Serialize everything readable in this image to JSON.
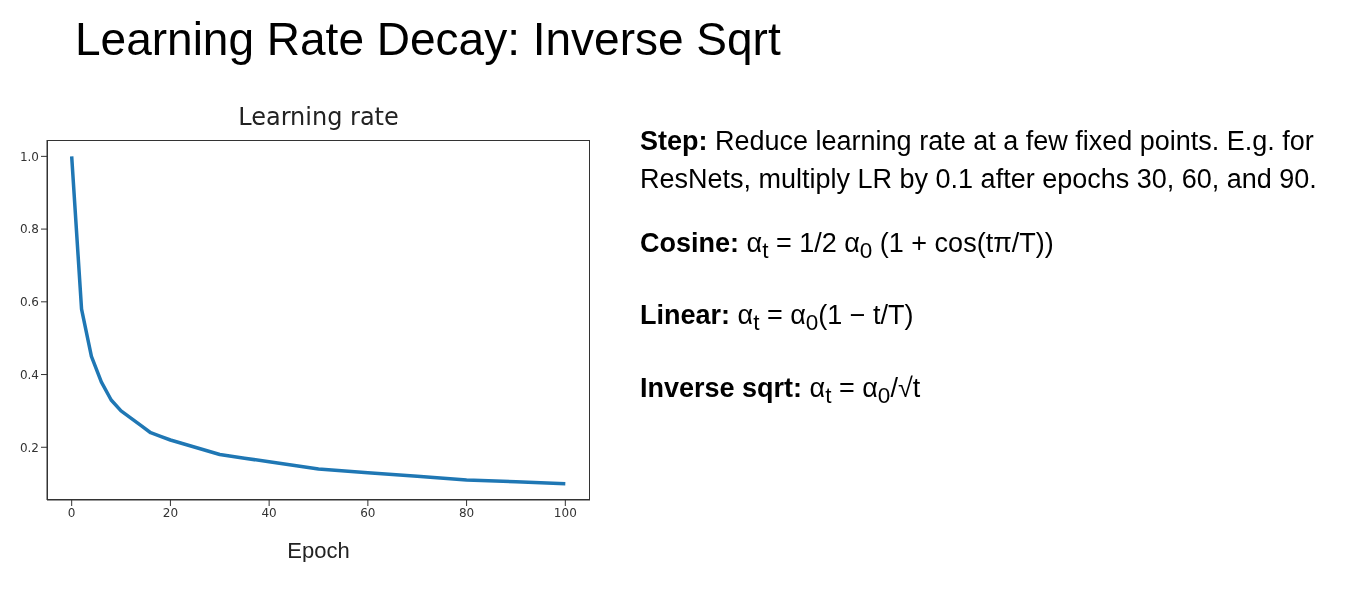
{
  "chart_data": {
    "type": "line",
    "title": "Learning Rate Decay: Inverse Sqrt",
    "subtitle": "Learning rate",
    "xlabel": "Epoch",
    "x": [
      0,
      2,
      4,
      6,
      8,
      10,
      12,
      14,
      16,
      18,
      20,
      25,
      30,
      35,
      40,
      50,
      60,
      70,
      80,
      90,
      100
    ],
    "series": [
      {
        "color": "#1f77b4",
        "values": [
          1.0,
          0.58,
          0.45,
          0.38,
          0.33,
          0.3,
          0.28,
          0.26,
          0.24,
          0.23,
          0.22,
          0.2,
          0.18,
          0.17,
          0.16,
          0.14,
          0.13,
          0.12,
          0.11,
          0.105,
          0.1
        ]
      }
    ],
    "xlim": [
      -5,
      105
    ],
    "ylim": [
      0.055,
      1.045
    ],
    "xticks": [
      0,
      20,
      40,
      60,
      80,
      100
    ],
    "yticks": [
      {
        "value": 0.2,
        "label": "0.2"
      },
      {
        "value": 0.4,
        "label": "0.4"
      },
      {
        "value": 0.6,
        "label": "0.6"
      },
      {
        "value": 0.8,
        "label": "0.8"
      },
      {
        "value": 1,
        "label": "1.0"
      }
    ],
    "grid": false,
    "marker": "none",
    "line_style": "solid",
    "annotations": [
      "Step: Reduce learning rate at a few fixed points. E.g. for ResNets, multiply LR by 0.1 after epochs 30, 60, and 90.",
      "Cosine: α$_{t}$ = 1/2 α$_{0}$ (1 + cos(tπ/T))",
      "Linear: α$_{t}$ = α$_{0}$(1 − t/T)",
      "Inverse sqrt: α$_{t}$ = α$_{0}$/√t"
    ]
  }
}
